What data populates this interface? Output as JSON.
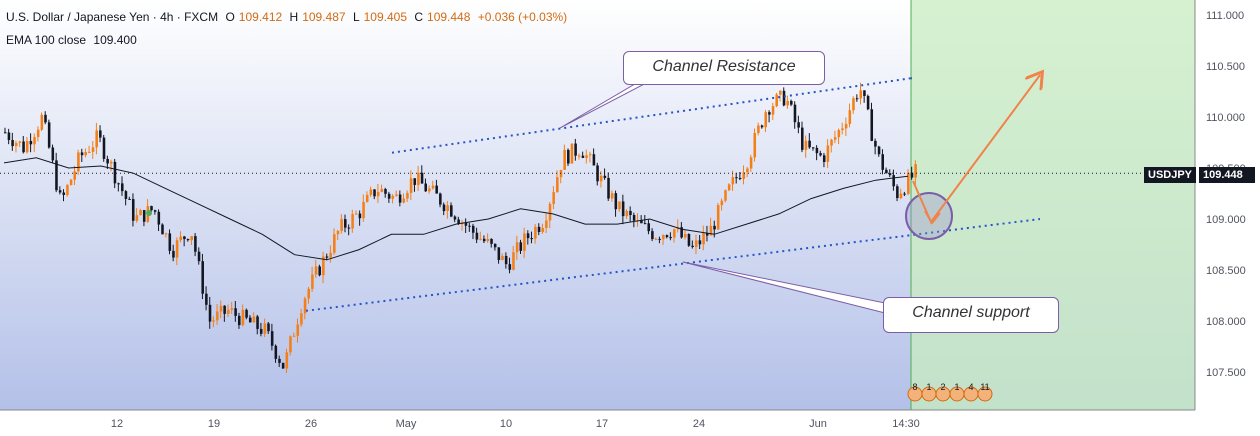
{
  "legend": {
    "symbol_title": "U.S. Dollar / Japanese Yen · 4h · FXCM",
    "open_label": "O",
    "open_value": "109.412",
    "high_label": "H",
    "high_value": "109.487",
    "low_label": "L",
    "low_value": "109.405",
    "close_label": "C",
    "close_value": "109.448",
    "change": "+0.036 (+0.03%)",
    "indicator_name": "EMA 100 close",
    "indicator_value": "109.400"
  },
  "annotations": {
    "resistance_label": "Channel Resistance",
    "support_label": "Channel support"
  },
  "price_tag": {
    "symbol": "USDJPY",
    "value": "109.448"
  },
  "event_icons": [
    "8",
    "1",
    "2",
    "1",
    "4",
    "11"
  ],
  "colors": {
    "up": "#f57f17",
    "down": "#131722",
    "ema": "#131722",
    "channel": "#2753c8",
    "forecast_arrow": "#f0824a",
    "highlight_zone": "#c8ecc0",
    "circle": "#7b5ea7"
  },
  "chart_data": {
    "type": "candlestick",
    "title": "U.S. Dollar / Japanese Yen · 4h · FXCM",
    "ylim": [
      107.1,
      111.1
    ],
    "y_ticks": [
      "111.000",
      "110.500",
      "110.000",
      "109.500",
      "109.000",
      "108.500",
      "108.000",
      "107.500"
    ],
    "x_ticks": [
      "12",
      "19",
      "26",
      "May",
      "10",
      "17",
      "24",
      "Jun",
      "14:30"
    ],
    "close_path": [
      109.85,
      109.7,
      110.0,
      109.15,
      109.6,
      109.8,
      109.4,
      109.0,
      109.1,
      108.7,
      108.9,
      108.0,
      108.1,
      108.0,
      107.9,
      107.55,
      108.2,
      108.55,
      108.9,
      109.05,
      109.3,
      109.2,
      109.4,
      109.25,
      109.1,
      108.9,
      108.75,
      108.55,
      108.8,
      109.0,
      109.6,
      109.7,
      109.4,
      109.1,
      108.95,
      108.85,
      108.9,
      108.7,
      108.9,
      109.3,
      109.6,
      110.1,
      110.2,
      109.7,
      109.6,
      109.9,
      110.3,
      109.6,
      109.25,
      109.45
    ],
    "ema_path": [
      109.55,
      109.6,
      109.5,
      109.52,
      109.45,
      109.3,
      109.15,
      109.0,
      108.85,
      108.65,
      108.6,
      108.7,
      108.85,
      108.85,
      108.95,
      109.0,
      109.1,
      109.05,
      108.95,
      108.95,
      109.0,
      108.9,
      108.85,
      108.95,
      109.05,
      109.2,
      109.3,
      109.38,
      109.42
    ],
    "channel_resistance": {
      "x_range": [
        "May 1",
        "Jun 14:30"
      ],
      "values": [
        109.65,
        110.38
      ]
    },
    "channel_support": {
      "x_range": [
        "Apr 26",
        "Jun 14:30"
      ],
      "values": [
        108.1,
        109.0
      ]
    },
    "last_price": 109.448,
    "forecast": {
      "start": 109.45,
      "pivot": 108.95,
      "target": 110.38
    }
  }
}
